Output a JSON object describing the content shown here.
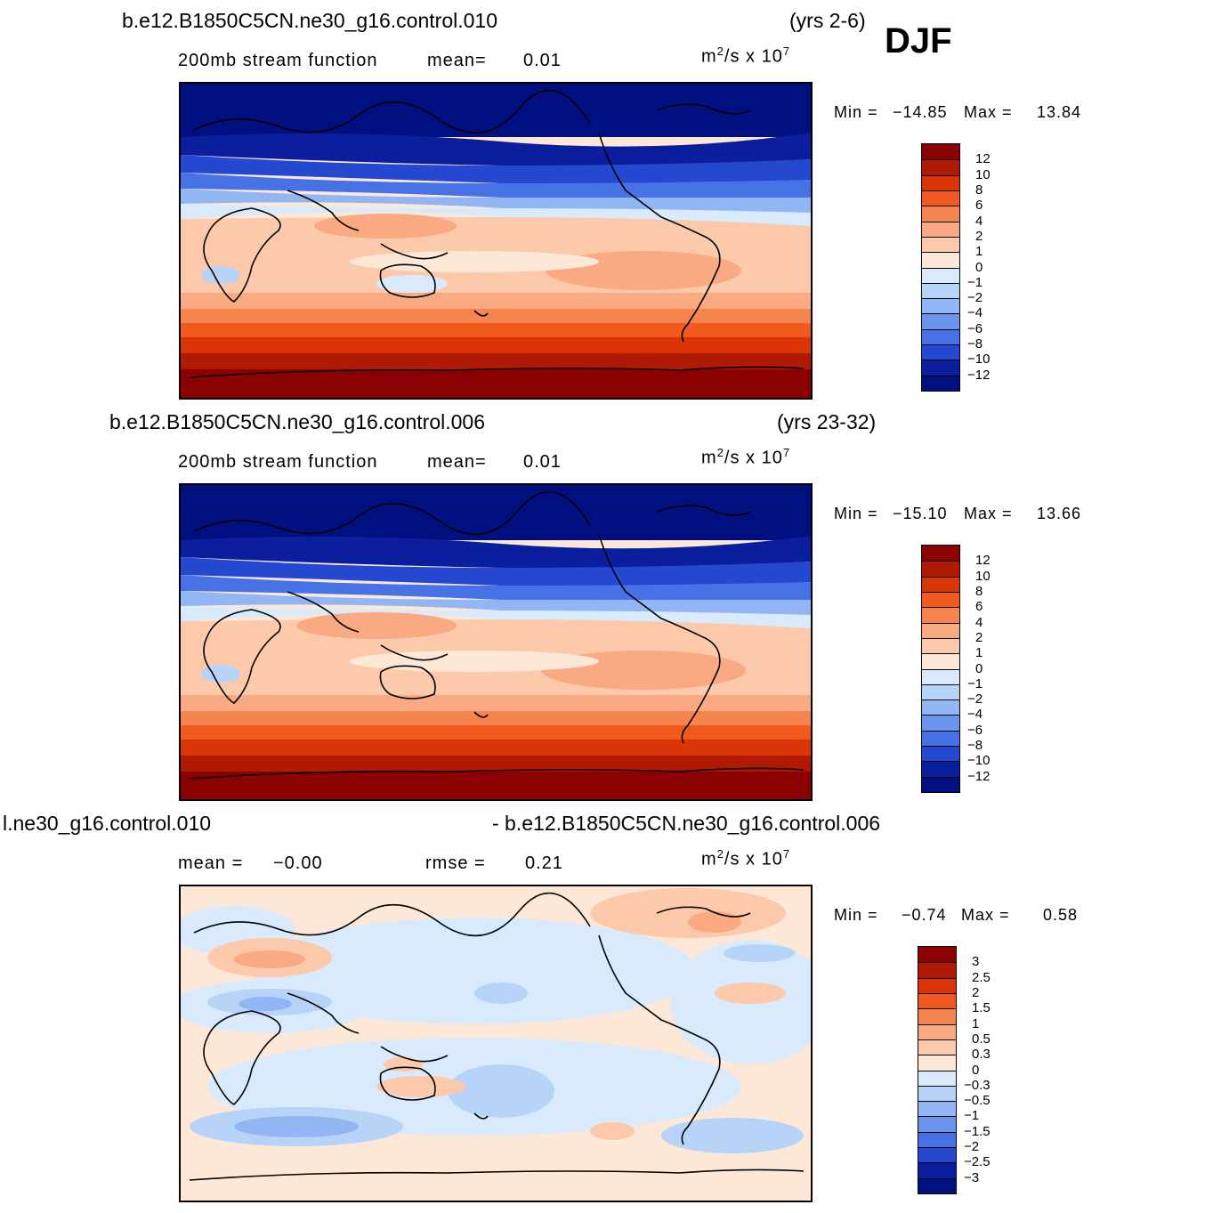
{
  "season": "DJF",
  "panels": [
    {
      "case_label": "b.e12.B1850C5CN.ne30_g16.control.010",
      "years": "(yrs 2-6)",
      "subtitle_left": "200mb  stream  function",
      "mean_label": "mean=",
      "mean_value": "0.01",
      "units_base": "m",
      "units_exp": "2",
      "units_rest": "/s  x  10",
      "units_pow": "7",
      "min_label": "Min  =",
      "min_value": "−14.85",
      "max_label": "Max  =",
      "max_value": "13.84",
      "colorbar_labels": [
        "12",
        "10",
        "8",
        "6",
        "4",
        "2",
        "1",
        "0",
        "−1",
        "−2",
        "−4",
        "−6",
        "−8",
        "−10",
        "−12"
      ]
    },
    {
      "case_label": "b.e12.B1850C5CN.ne30_g16.control.006",
      "years": "(yrs 23-32)",
      "subtitle_left": "200mb  stream  function",
      "mean_label": "mean=",
      "mean_value": "0.01",
      "units_base": "m",
      "units_exp": "2",
      "units_rest": "/s  x  10",
      "units_pow": "7",
      "min_label": "Min  =",
      "min_value": "−15.10",
      "max_label": "Max  =",
      "max_value": "13.66",
      "colorbar_labels": [
        "12",
        "10",
        "8",
        "6",
        "4",
        "2",
        "1",
        "0",
        "−1",
        "−2",
        "−4",
        "−6",
        "−8",
        "−10",
        "−12"
      ]
    },
    {
      "case_label": "l.ne30_g16.control.010",
      "case_label_right": "- b.e12.B1850C5CN.ne30_g16.control.006",
      "mean_label": "mean  =",
      "mean_value": "−0.00",
      "rmse_label": "rmse  =",
      "rmse_value": "0.21",
      "units_base": "m",
      "units_exp": "2",
      "units_rest": "/s  x  10",
      "units_pow": "7",
      "min_label": "Min  =",
      "min_value": "−0.74",
      "max_label": "Max  =",
      "max_value": "0.58",
      "colorbar_labels": [
        "3",
        "2.5",
        "2",
        "1.5",
        "1",
        "0.5",
        "0.3",
        "0",
        "−0.3",
        "−0.5",
        "−1",
        "−1.5",
        "−2",
        "−2.5",
        "−3"
      ]
    }
  ],
  "colors": {
    "scale": [
      "#8b0000",
      "#b01a05",
      "#d93508",
      "#f05a1e",
      "#f6844e",
      "#f9aa82",
      "#fcc9ab",
      "#fde8d8",
      "#d8eafb",
      "#b7d4f8",
      "#92b6f4",
      "#6c95ee",
      "#4672e6",
      "#2448cf",
      "#0b1f9e",
      "#001080"
    ]
  }
}
